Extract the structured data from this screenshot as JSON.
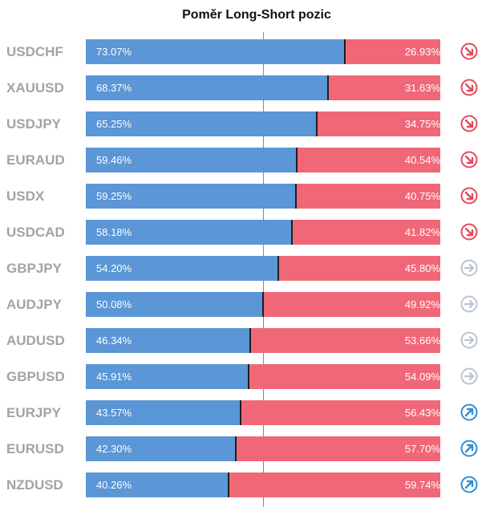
{
  "chart_data": {
    "type": "bar",
    "title": "Poměr Long-Short pozic",
    "categories": [
      "USDCHF",
      "XAUUSD",
      "USDJPY",
      "EURAUD",
      "USDX",
      "USDCAD",
      "GBPJPY",
      "AUDJPY",
      "AUDUSD",
      "GBPUSD",
      "EURJPY",
      "EURUSD",
      "NZDUSD"
    ],
    "series": [
      {
        "values": [
          73.07,
          68.37,
          65.25,
          59.46,
          59.25,
          58.18,
          54.2,
          50.08,
          46.34,
          45.91,
          43.57,
          42.3,
          40.26
        ]
      },
      {
        "values": [
          26.93,
          31.63,
          34.75,
          40.54,
          40.75,
          41.82,
          45.8,
          49.92,
          53.66,
          54.09,
          56.43,
          57.7,
          59.74
        ]
      }
    ],
    "long_labels": [
      "73.07%",
      "68.37%",
      "65.25%",
      "59.46%",
      "59.25%",
      "58.18%",
      "54.20%",
      "50.08%",
      "46.34%",
      "45.91%",
      "43.57%",
      "42.30%",
      "40.26%"
    ],
    "short_labels": [
      "26.93%",
      "31.63%",
      "34.75%",
      "40.54%",
      "40.75%",
      "41.82%",
      "45.80%",
      "49.92%",
      "53.66%",
      "54.09%",
      "56.43%",
      "57.70%",
      "59.74%"
    ],
    "signal_icons": [
      "arrow-down-right-icon",
      "arrow-down-right-icon",
      "arrow-down-right-icon",
      "arrow-down-right-icon",
      "arrow-down-right-icon",
      "arrow-down-right-icon",
      "arrow-right-icon",
      "arrow-right-icon",
      "arrow-right-icon",
      "arrow-right-icon",
      "arrow-up-right-icon",
      "arrow-up-right-icon",
      "arrow-up-right-icon"
    ],
    "ylim": [
      0,
      100
    ]
  },
  "colors": {
    "long": "#5b96d6",
    "short": "#f06878",
    "down": "#e8475c",
    "neutral": "#b9c4d2",
    "up": "#2f8ed6"
  }
}
